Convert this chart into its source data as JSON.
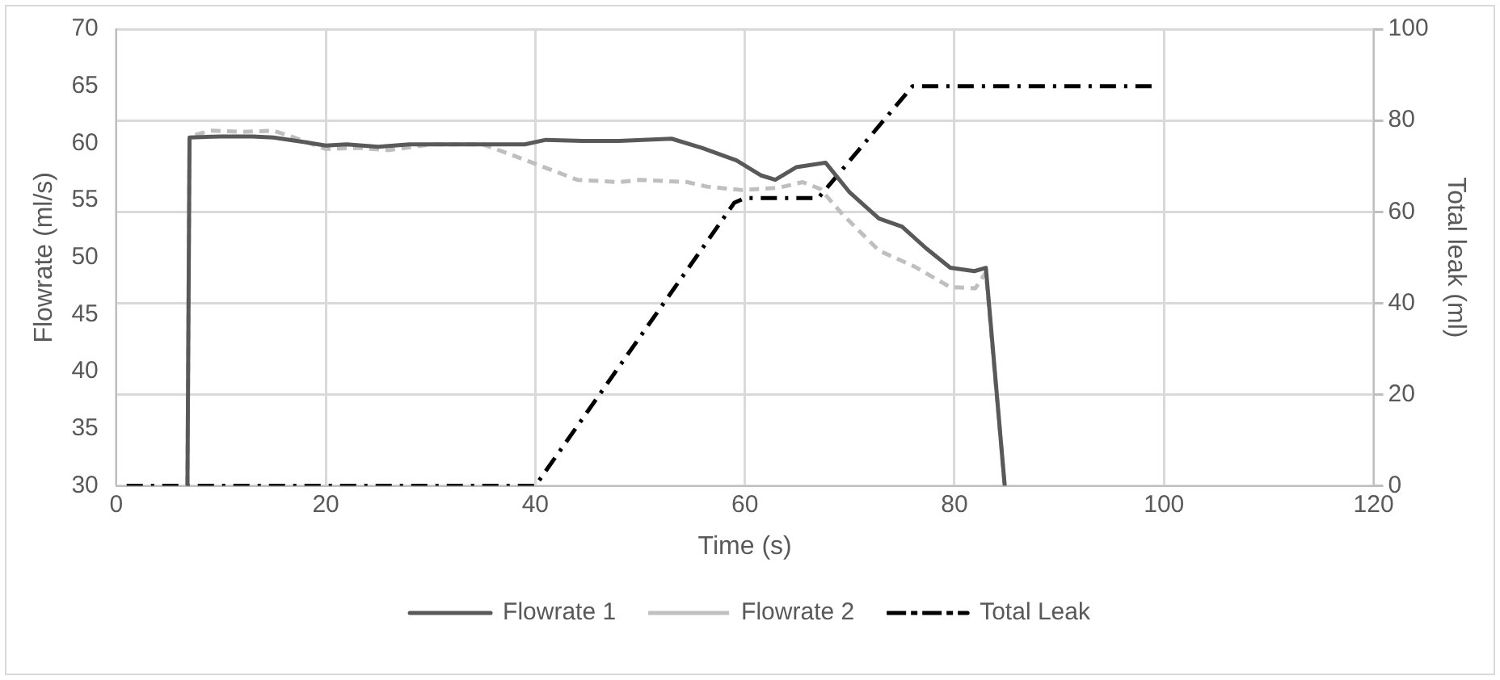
{
  "chart_data": {
    "type": "line",
    "xlabel": "Time (s)",
    "ylabel": "Flowrate (ml/s)",
    "y2label": "Total leak (ml)",
    "xlim": [
      0,
      120
    ],
    "xticks": [
      0,
      20,
      40,
      60,
      80,
      100,
      120
    ],
    "ylim": [
      30,
      70
    ],
    "yticks": [
      30,
      35,
      40,
      45,
      50,
      55,
      60,
      65,
      70
    ],
    "y2lim": [
      0,
      100
    ],
    "y2ticks": [
      0,
      20,
      40,
      60,
      80,
      100
    ],
    "grid": true,
    "legend": "bottom",
    "marker": "none",
    "series": [
      {
        "name": "Flowrate 1",
        "color": "#595959",
        "line_style": "solid",
        "x": [
          6.8,
          7,
          10,
          13,
          15,
          18,
          20,
          22,
          25,
          28,
          30,
          35,
          39,
          41,
          44.5,
          48,
          53,
          55.9,
          59.2,
          61.5,
          62.9,
          64.9,
          67.7,
          70,
          72.8,
          75,
          77.3,
          79.6,
          81.9,
          83,
          84.8
        ],
        "values": [
          30,
          60.5,
          60.6,
          60.6,
          60.5,
          60.1,
          59.8,
          59.9,
          59.7,
          59.9,
          59.9,
          59.9,
          59.9,
          60.3,
          60.2,
          60.2,
          60.4,
          59.6,
          58.5,
          57.2,
          56.8,
          57.9,
          58.3,
          55.7,
          53.4,
          52.7,
          50.8,
          49.1,
          48.8,
          49.1,
          30
        ]
      },
      {
        "name": "Flowrate 2",
        "color": "#bfbfbf",
        "line_style": "dashed",
        "x": [
          6.8,
          7,
          9,
          12,
          15,
          17,
          20,
          23,
          26,
          30,
          35,
          37.7,
          40,
          44,
          48,
          50,
          54.5,
          56.4,
          59.8,
          63.2,
          65.5,
          67.2,
          69.4,
          72.8,
          76.2,
          79.6,
          82,
          83,
          84.8
        ],
        "values": [
          30,
          60.6,
          61.1,
          61,
          61.1,
          60.5,
          59.5,
          59.6,
          59.4,
          59.9,
          59.9,
          59,
          58.2,
          56.8,
          56.6,
          56.8,
          56.6,
          56.2,
          55.9,
          56.1,
          56.6,
          56,
          53.7,
          50.6,
          49.2,
          47.4,
          47.3,
          48.7,
          30
        ]
      },
      {
        "name": "Total Leak",
        "color": "#000000",
        "line_style": "dashdot",
        "axis": "y2",
        "x": [
          1,
          40,
          59,
          60,
          67,
          76,
          99
        ],
        "values": [
          0,
          0,
          62,
          63,
          63,
          87.5,
          87.5
        ]
      }
    ]
  }
}
